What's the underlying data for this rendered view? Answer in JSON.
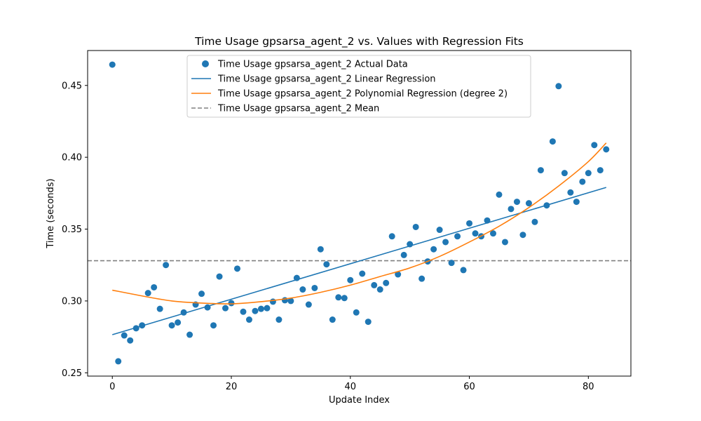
{
  "chart_data": {
    "type": "scatter",
    "title": "Time Usage gpsarsa_agent_2 vs. Values with Regression Fits",
    "xlabel": "Update Index",
    "ylabel": "Time (seconds)",
    "xlim": [
      -4.15,
      87.15
    ],
    "ylim": [
      0.2477,
      0.4743
    ],
    "x_ticks": [
      0,
      20,
      40,
      60,
      80
    ],
    "y_ticks": [
      0.25,
      0.3,
      0.35,
      0.4,
      0.45
    ],
    "x_tick_labels": [
      "0",
      "20",
      "40",
      "60",
      "80"
    ],
    "y_tick_labels": [
      "0.25",
      "0.30",
      "0.35",
      "0.40",
      "0.45"
    ],
    "grid": false,
    "legend_position": "top-center",
    "colors": {
      "actual": "#1f77b4",
      "linear": "#1f77b4",
      "polynomial": "#ff7f0e",
      "mean": "#808080"
    },
    "series": [
      {
        "name": "Time Usage gpsarsa_agent_2 Actual Data",
        "kind": "scatter",
        "x": [
          0,
          1,
          2,
          3,
          4,
          5,
          6,
          7,
          8,
          9,
          10,
          11,
          12,
          13,
          14,
          15,
          16,
          17,
          18,
          19,
          20,
          21,
          22,
          23,
          24,
          25,
          26,
          27,
          28,
          29,
          30,
          31,
          32,
          33,
          34,
          35,
          36,
          37,
          38,
          39,
          40,
          41,
          42,
          43,
          44,
          45,
          46,
          47,
          48,
          49,
          50,
          51,
          52,
          53,
          54,
          55,
          56,
          57,
          58,
          59,
          60,
          61,
          62,
          63,
          64,
          65,
          66,
          67,
          68,
          69,
          70,
          71,
          72,
          73,
          74,
          75,
          76,
          77,
          78,
          79,
          80,
          81,
          82,
          83
        ],
        "y": [
          0.4645,
          0.258,
          0.276,
          0.2725,
          0.281,
          0.283,
          0.3055,
          0.3095,
          0.2945,
          0.325,
          0.283,
          0.285,
          0.292,
          0.2765,
          0.2975,
          0.305,
          0.2955,
          0.283,
          0.317,
          0.295,
          0.2985,
          0.3225,
          0.2925,
          0.287,
          0.293,
          0.2945,
          0.295,
          0.2995,
          0.287,
          0.3005,
          0.3,
          0.316,
          0.308,
          0.2975,
          0.309,
          0.336,
          0.3255,
          0.287,
          0.3025,
          0.302,
          0.3145,
          0.292,
          0.319,
          0.2855,
          0.311,
          0.308,
          0.3125,
          0.345,
          0.3185,
          0.332,
          0.3395,
          0.3515,
          0.3155,
          0.3275,
          0.336,
          0.3495,
          0.341,
          0.3265,
          0.345,
          0.3215,
          0.354,
          0.347,
          0.345,
          0.356,
          0.347,
          0.374,
          0.341,
          0.364,
          0.369,
          0.346,
          0.368,
          0.355,
          0.391,
          0.3665,
          0.411,
          0.4495,
          0.389,
          0.3755,
          0.369,
          0.383,
          0.389,
          0.4085,
          0.391,
          0.4055
        ]
      },
      {
        "name": "Time Usage gpsarsa_agent_2 Linear Regression",
        "kind": "line",
        "x": [
          0,
          83
        ],
        "y": [
          0.2765,
          0.379
        ]
      },
      {
        "name": "Time Usage gpsarsa_agent_2 Polynomial Regression (degree 2)",
        "kind": "line",
        "x": [
          0,
          5,
          10,
          15,
          20,
          25,
          30,
          35,
          40,
          45,
          50,
          55,
          60,
          65,
          70,
          75,
          80,
          83
        ],
        "y": [
          0.3075,
          0.3035,
          0.3,
          0.2985,
          0.298,
          0.2995,
          0.302,
          0.306,
          0.311,
          0.317,
          0.323,
          0.331,
          0.341,
          0.352,
          0.365,
          0.38,
          0.397,
          0.41
        ]
      },
      {
        "name": "Time Usage gpsarsa_agent_2 Mean",
        "kind": "hline",
        "y": 0.328
      }
    ]
  }
}
